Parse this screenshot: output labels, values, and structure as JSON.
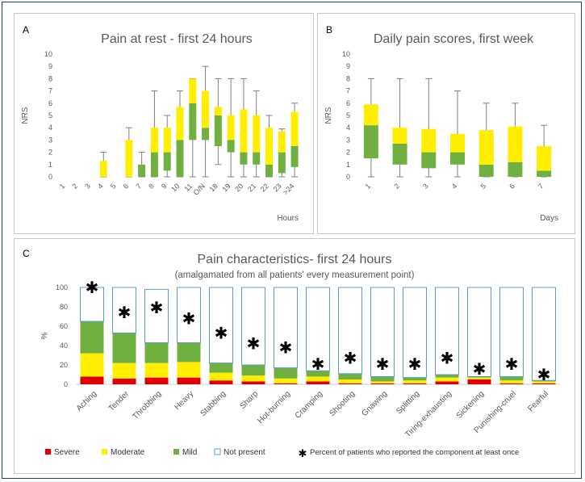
{
  "chart_data": [
    {
      "panel": "A",
      "type": "boxplot",
      "title": "Pain at rest - first 24 hours",
      "xlabel": "Hours",
      "ylabel": "NRS",
      "ylim": [
        0,
        10
      ],
      "yticks": [
        0,
        1,
        2,
        3,
        4,
        5,
        6,
        7,
        8,
        9,
        10
      ],
      "categories": [
        "1",
        "2",
        "3",
        "4",
        "5",
        "6",
        "7",
        "8",
        "9",
        "10",
        "11",
        "O/N",
        "18",
        "19",
        "20",
        "21",
        "22",
        "23",
        ">24"
      ],
      "boxes": [
        null,
        null,
        null,
        {
          "min": 0,
          "q1": 0,
          "median": 0,
          "q3": 1.3,
          "max": 2
        },
        null,
        {
          "min": 0,
          "q1": 0,
          "median": 0,
          "q3": 3,
          "max": 4
        },
        {
          "min": 0,
          "q1": 0,
          "median": 1,
          "q3": 1,
          "max": 2
        },
        {
          "min": 0,
          "q1": 0,
          "median": 2,
          "q3": 4,
          "max": 7
        },
        {
          "min": 0,
          "q1": 0.5,
          "median": 2,
          "q3": 4,
          "max": 5
        },
        {
          "min": 0,
          "q1": 0,
          "median": 3,
          "q3": 5.7,
          "max": 7
        },
        {
          "min": 0,
          "q1": 3,
          "median": 6,
          "q3": 8,
          "max": 8
        },
        {
          "min": 0,
          "q1": 3,
          "median": 4,
          "q3": 7,
          "max": 9
        },
        {
          "min": 1,
          "q1": 2.5,
          "median": 5,
          "q3": 5.7,
          "max": 8
        },
        {
          "min": 0,
          "q1": 2,
          "median": 3,
          "q3": 5,
          "max": 8
        },
        {
          "min": 0,
          "q1": 1,
          "median": 2,
          "q3": 5.5,
          "max": 8
        },
        {
          "min": 0,
          "q1": 1,
          "median": 2,
          "q3": 5,
          "max": 7
        },
        {
          "min": 0,
          "q1": 0,
          "median": 1,
          "q3": 4,
          "max": 5
        },
        {
          "min": 0,
          "q1": 0.3,
          "median": 2,
          "q3": 3.7,
          "max": 3.9
        },
        {
          "min": 0,
          "q1": 0.8,
          "median": 2.5,
          "q3": 5.3,
          "max": 6
        }
      ]
    },
    {
      "panel": "B",
      "type": "boxplot",
      "title": "Daily pain scores, first week",
      "xlabel": "Days",
      "ylabel": "NRS",
      "ylim": [
        0,
        10
      ],
      "yticks": [
        0,
        1,
        2,
        3,
        4,
        5,
        6,
        7,
        8,
        9,
        10
      ],
      "categories": [
        "1",
        "2",
        "3",
        "4",
        "5",
        "6",
        "7"
      ],
      "boxes": [
        {
          "min": 0,
          "q1": 1.5,
          "median": 4.2,
          "q3": 5.9,
          "max": 8
        },
        {
          "min": 0,
          "q1": 1,
          "median": 2.7,
          "q3": 4,
          "max": 8
        },
        {
          "min": 0,
          "q1": 0.7,
          "median": 2,
          "q3": 3.9,
          "max": 8
        },
        {
          "min": 0,
          "q1": 1,
          "median": 2,
          "q3": 3.5,
          "max": 7
        },
        {
          "min": 0,
          "q1": 0,
          "median": 1,
          "q3": 3.8,
          "max": 6
        },
        {
          "min": 0,
          "q1": 0,
          "median": 1.2,
          "q3": 4.1,
          "max": 6
        },
        {
          "min": 0,
          "q1": 0,
          "median": 0.5,
          "q3": 2.5,
          "max": 4.2
        }
      ]
    },
    {
      "panel": "C",
      "type": "stacked-bar",
      "title": "Pain characteristics- first 24 hours",
      "subtitle": "(amalgamated from all patients' every measurement point)",
      "ylabel": "%",
      "ylim": [
        0,
        100
      ],
      "yticks": [
        0,
        20,
        40,
        60,
        80,
        100
      ],
      "categories": [
        "Aching",
        "Tender",
        "Throbbing",
        "Heavy",
        "Stabbing",
        "Sharp",
        "Hot-burning",
        "Cramping",
        "Shooting",
        "Gnawing",
        "Splitting",
        "Tiring-exhausting",
        "Sickening",
        "Punishing-cruel",
        "Fearful"
      ],
      "series": [
        {
          "name": "Severe",
          "color": "#e00000",
          "values": [
            8,
            6,
            7,
            7,
            4,
            3,
            1,
            3,
            1,
            1,
            1,
            3,
            5,
            1,
            1
          ]
        },
        {
          "name": "Moderate",
          "color": "#ffee00",
          "values": [
            24,
            16,
            15,
            16,
            8,
            6,
            5,
            5,
            4,
            2,
            3,
            4,
            2,
            3,
            2
          ]
        },
        {
          "name": "Mild",
          "color": "#70b040",
          "values": [
            33,
            31,
            21,
            20,
            10,
            11,
            11,
            6,
            6,
            5,
            3,
            3,
            1,
            4,
            1
          ]
        },
        {
          "name": "Not present",
          "color": "#5b9bd5",
          "values": [
            35,
            47,
            55,
            57,
            78,
            80,
            83,
            86,
            89,
            92,
            93,
            90,
            92,
            92,
            96
          ]
        }
      ],
      "percent_patients": {
        "name": "Percent of patients who reported the component at least once",
        "values": [
          100,
          74,
          79,
          68,
          53,
          42,
          38,
          21,
          27,
          21,
          21,
          27,
          16,
          21,
          10
        ]
      }
    }
  ],
  "labels": {
    "panel_a": "A",
    "panel_b": "B",
    "panel_c": "C"
  }
}
